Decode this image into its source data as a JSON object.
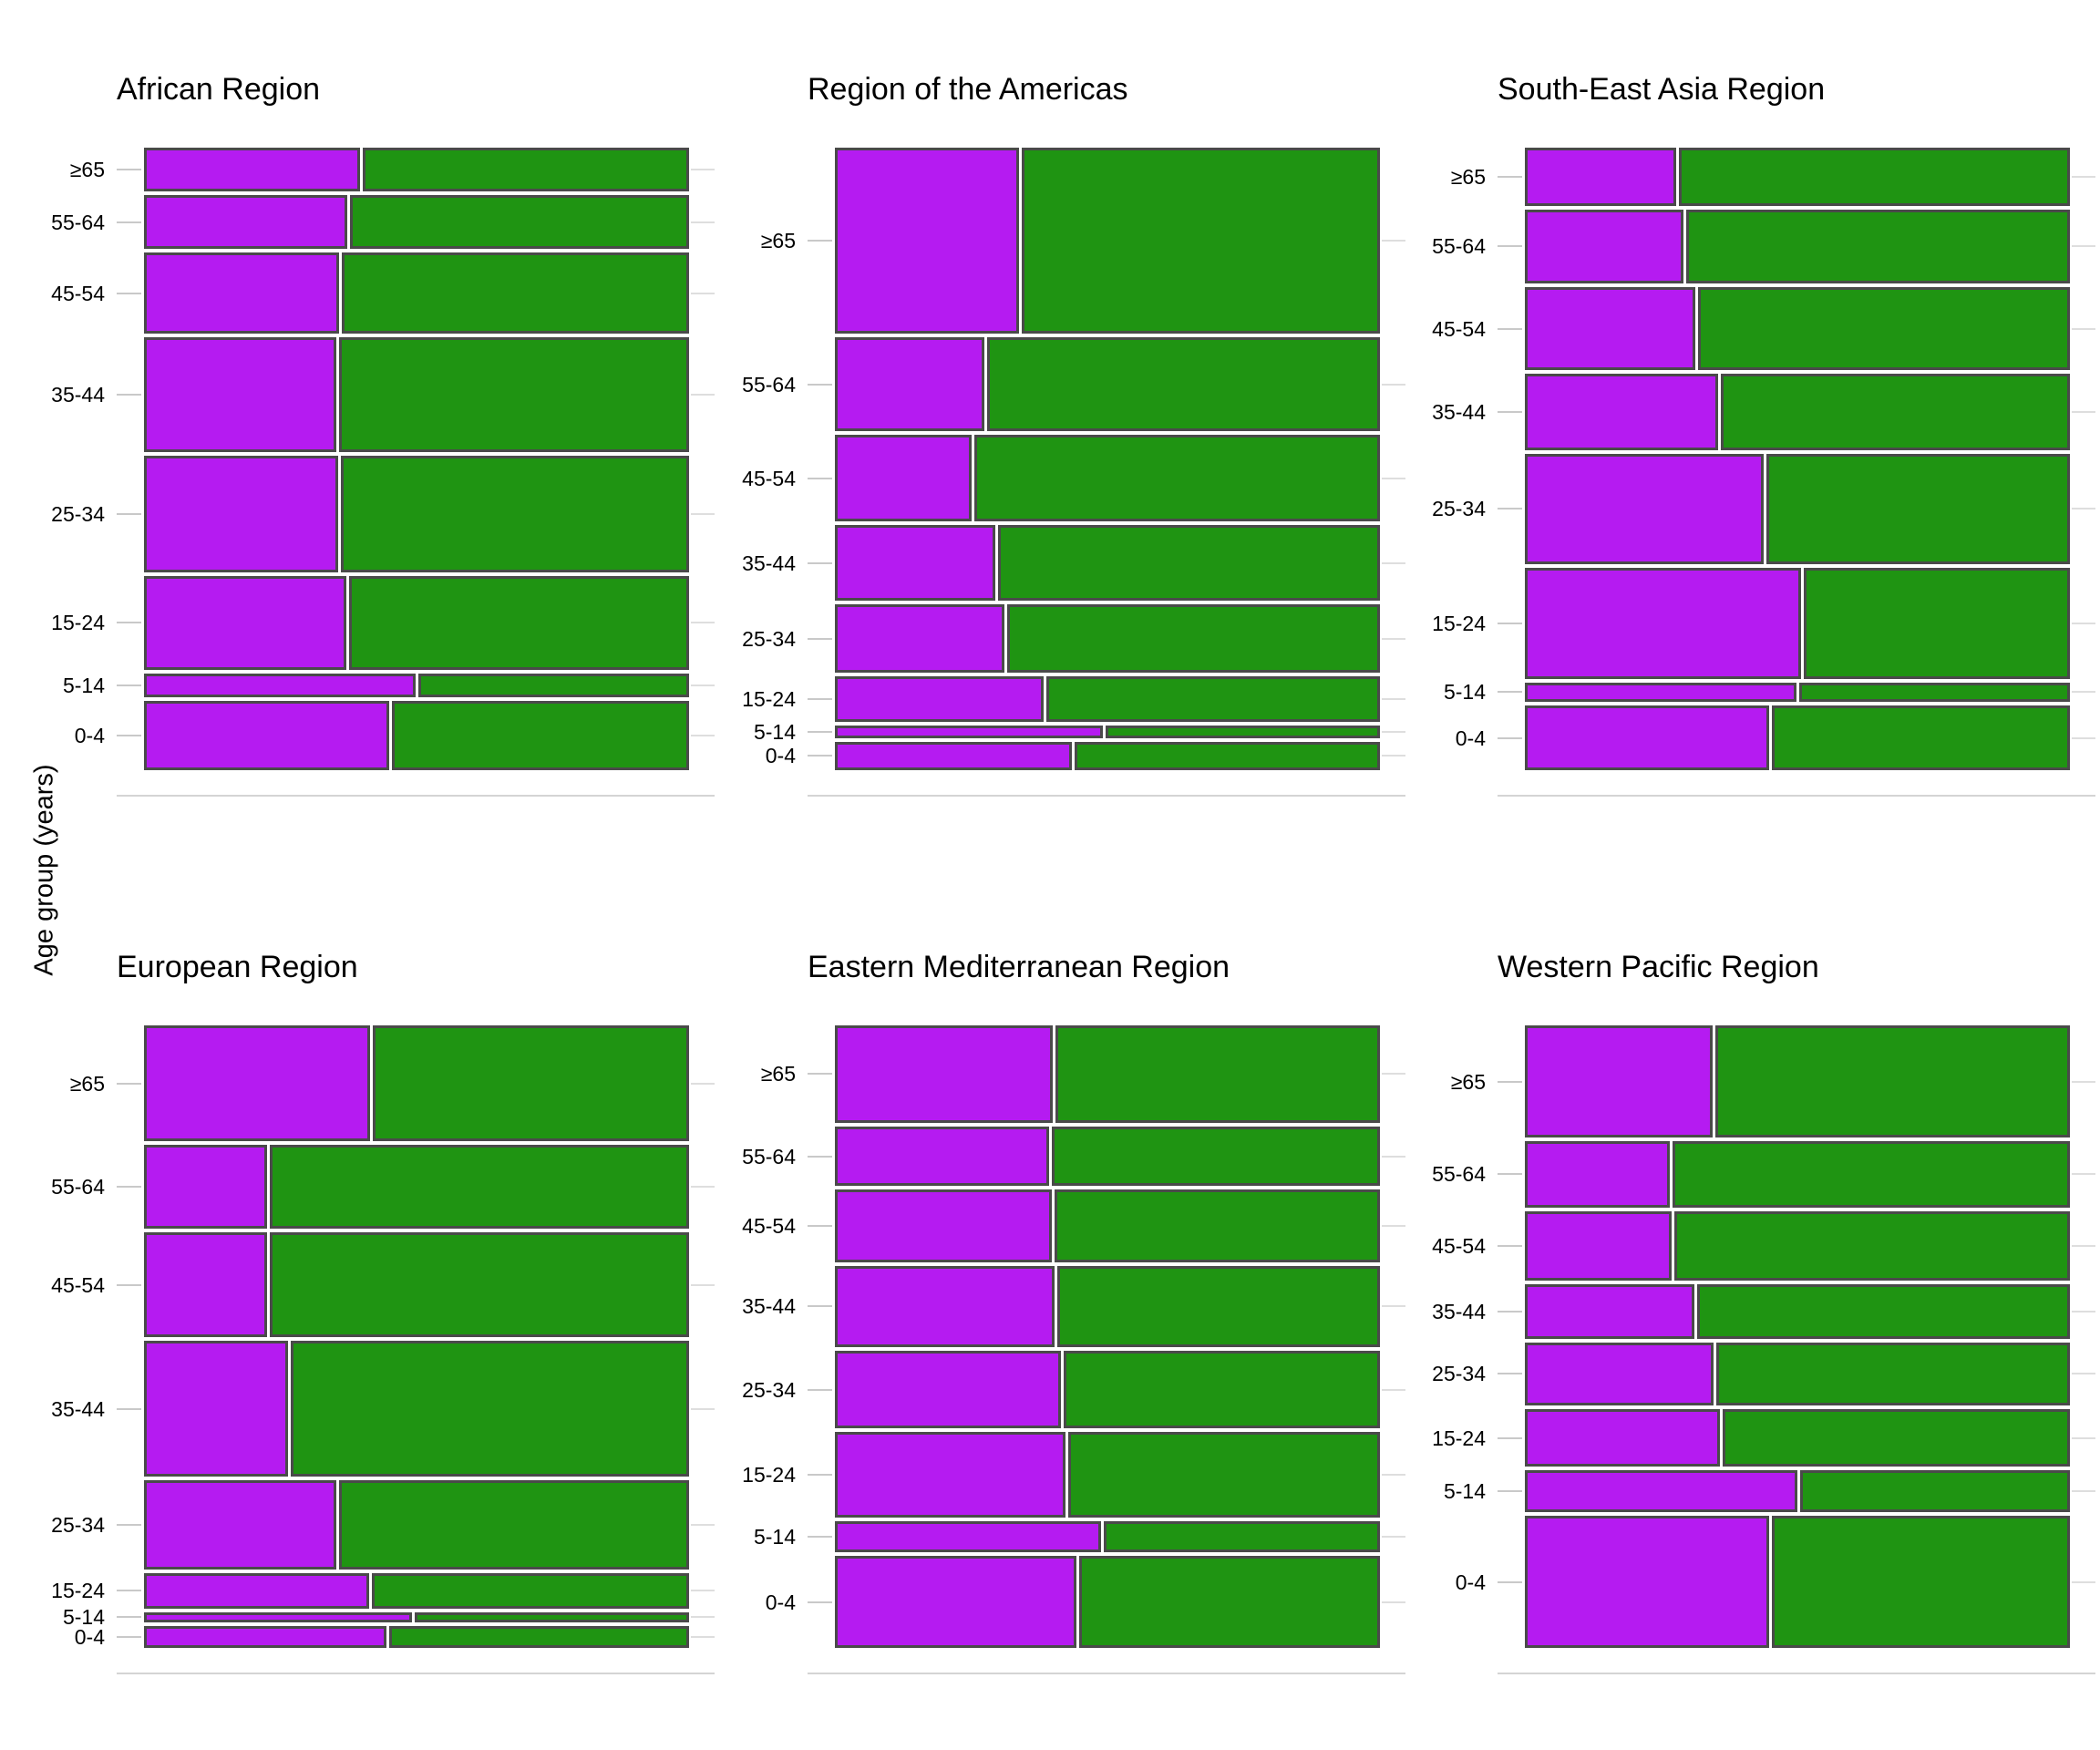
{
  "y_axis_label": "Age group (years)",
  "age_groups_top_to_bottom": [
    "≥65",
    "55-64",
    "45-54",
    "35-44",
    "25-34",
    "15-24",
    "5-14",
    "0-4"
  ],
  "colors": {
    "purple_segment": "#b51bf1",
    "green_segment": "#1f9412",
    "segment_border": "#4a4a4a",
    "tick_line": "#c9c9c9",
    "baseline_line": "#d4d4d4",
    "grid_stub": "#dedede",
    "text": "#000000"
  },
  "chart_data": {
    "type": "mosaic",
    "title": "",
    "xlabel": "",
    "ylabel": "Age group (years)",
    "note": "Six-panel mosaic plot. Each panel: horizontal bands per age group (top to bottom ≥65 through 0-4). Band height_share = fraction of panel bar-area height; purple_fraction = horizontal split point between left purple segment and right green segment.",
    "age_groups": [
      "≥65",
      "55-64",
      "45-54",
      "35-44",
      "25-34",
      "15-24",
      "5-14",
      "0-4"
    ],
    "panels": [
      {
        "title": "African Region",
        "rows": [
          {
            "age_group": "≥65",
            "height_share": 0.074,
            "purple_fraction": 0.398
          },
          {
            "age_group": "55-64",
            "height_share": 0.09,
            "purple_fraction": 0.375
          },
          {
            "age_group": "45-54",
            "height_share": 0.135,
            "purple_fraction": 0.36
          },
          {
            "age_group": "35-44",
            "height_share": 0.192,
            "purple_fraction": 0.356
          },
          {
            "age_group": "25-34",
            "height_share": 0.196,
            "purple_fraction": 0.359
          },
          {
            "age_group": "15-24",
            "height_share": 0.157,
            "purple_fraction": 0.373
          },
          {
            "age_group": "5-14",
            "height_share": 0.04,
            "purple_fraction": 0.501
          },
          {
            "age_group": "0-4",
            "height_share": 0.116,
            "purple_fraction": 0.452
          }
        ]
      },
      {
        "title": "Region of the Americas",
        "rows": [
          {
            "age_group": "≥65",
            "height_share": 0.312,
            "purple_fraction": 0.341
          },
          {
            "age_group": "55-64",
            "height_share": 0.157,
            "purple_fraction": 0.276
          },
          {
            "age_group": "45-54",
            "height_share": 0.145,
            "purple_fraction": 0.254
          },
          {
            "age_group": "35-44",
            "height_share": 0.127,
            "purple_fraction": 0.297
          },
          {
            "age_group": "25-34",
            "height_share": 0.114,
            "purple_fraction": 0.314
          },
          {
            "age_group": "15-24",
            "height_share": 0.076,
            "purple_fraction": 0.386
          },
          {
            "age_group": "5-14",
            "height_share": 0.021,
            "purple_fraction": 0.494
          },
          {
            "age_group": "0-4",
            "height_share": 0.048,
            "purple_fraction": 0.438
          }
        ]
      },
      {
        "title": "South-East Asia Region",
        "rows": [
          {
            "age_group": "≥65",
            "height_share": 0.098,
            "purple_fraction": 0.28
          },
          {
            "age_group": "55-64",
            "height_share": 0.123,
            "purple_fraction": 0.294
          },
          {
            "age_group": "45-54",
            "height_share": 0.14,
            "purple_fraction": 0.316
          },
          {
            "age_group": "35-44",
            "height_share": 0.127,
            "purple_fraction": 0.357
          },
          {
            "age_group": "25-34",
            "height_share": 0.185,
            "purple_fraction": 0.441
          },
          {
            "age_group": "15-24",
            "height_share": 0.186,
            "purple_fraction": 0.51
          },
          {
            "age_group": "5-14",
            "height_share": 0.033,
            "purple_fraction": 0.501
          },
          {
            "age_group": "0-4",
            "height_share": 0.108,
            "purple_fraction": 0.45
          }
        ]
      },
      {
        "title": "European Region",
        "rows": [
          {
            "age_group": "≥65",
            "height_share": 0.194,
            "purple_fraction": 0.418
          },
          {
            "age_group": "55-64",
            "height_share": 0.141,
            "purple_fraction": 0.229
          },
          {
            "age_group": "45-54",
            "height_share": 0.175,
            "purple_fraction": 0.228
          },
          {
            "age_group": "35-44",
            "height_share": 0.228,
            "purple_fraction": 0.267
          },
          {
            "age_group": "25-34",
            "height_share": 0.149,
            "purple_fraction": 0.356
          },
          {
            "age_group": "15-24",
            "height_share": 0.059,
            "purple_fraction": 0.415
          },
          {
            "age_group": "5-14",
            "height_share": 0.017,
            "purple_fraction": 0.494
          },
          {
            "age_group": "0-4",
            "height_share": 0.037,
            "purple_fraction": 0.448
          }
        ]
      },
      {
        "title": "Eastern Mediterranean Region",
        "rows": [
          {
            "age_group": "≥65",
            "height_share": 0.163,
            "purple_fraction": 0.403
          },
          {
            "age_group": "55-64",
            "height_share": 0.1,
            "purple_fraction": 0.396
          },
          {
            "age_group": "45-54",
            "height_share": 0.121,
            "purple_fraction": 0.401
          },
          {
            "age_group": "35-44",
            "height_share": 0.137,
            "purple_fraction": 0.405
          },
          {
            "age_group": "25-34",
            "height_share": 0.13,
            "purple_fraction": 0.417
          },
          {
            "age_group": "15-24",
            "height_share": 0.143,
            "purple_fraction": 0.425
          },
          {
            "age_group": "5-14",
            "height_share": 0.052,
            "purple_fraction": 0.49
          },
          {
            "age_group": "0-4",
            "height_share": 0.154,
            "purple_fraction": 0.446
          }
        ]
      },
      {
        "title": "Western Pacific Region",
        "rows": [
          {
            "age_group": "≥65",
            "height_share": 0.188,
            "purple_fraction": 0.347
          },
          {
            "age_group": "55-64",
            "height_share": 0.111,
            "purple_fraction": 0.268
          },
          {
            "age_group": "45-54",
            "height_share": 0.116,
            "purple_fraction": 0.272
          },
          {
            "age_group": "35-44",
            "height_share": 0.092,
            "purple_fraction": 0.314
          },
          {
            "age_group": "25-34",
            "height_share": 0.105,
            "purple_fraction": 0.348
          },
          {
            "age_group": "15-24",
            "height_share": 0.097,
            "purple_fraction": 0.361
          },
          {
            "age_group": "5-14",
            "height_share": 0.07,
            "purple_fraction": 0.503
          },
          {
            "age_group": "0-4",
            "height_share": 0.221,
            "purple_fraction": 0.45
          }
        ]
      }
    ],
    "layout_hint": {
      "grid": "2 rows x 3 columns",
      "legend": "none",
      "background": "white"
    }
  }
}
